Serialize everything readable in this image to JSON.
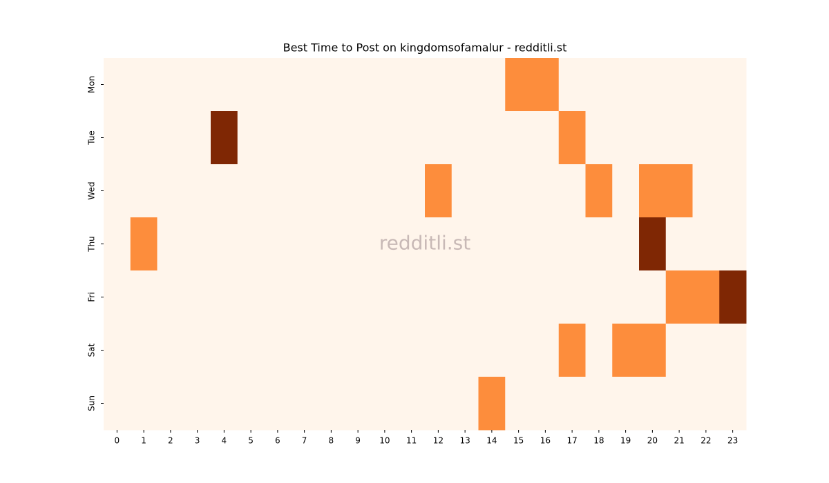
{
  "chart_data": {
    "type": "heatmap",
    "title": "Best Time to Post on kingdomsofamalur - redditli.st",
    "watermark": "redditli.st",
    "x_categories": [
      0,
      1,
      2,
      3,
      4,
      5,
      6,
      7,
      8,
      9,
      10,
      11,
      12,
      13,
      14,
      15,
      16,
      17,
      18,
      19,
      20,
      21,
      22,
      23
    ],
    "y_categories": [
      "Mon",
      "Tue",
      "Wed",
      "Thu",
      "Fri",
      "Sat",
      "Sun"
    ],
    "values": [
      [
        0,
        0,
        0,
        0,
        0,
        0,
        0,
        0,
        0,
        0,
        0,
        0,
        0,
        0,
        0,
        1,
        1,
        0,
        0,
        0,
        0,
        0,
        0,
        0
      ],
      [
        0,
        0,
        0,
        0,
        2,
        0,
        0,
        0,
        0,
        0,
        0,
        0,
        0,
        0,
        0,
        0,
        0,
        1,
        0,
        0,
        0,
        0,
        0,
        0
      ],
      [
        0,
        0,
        0,
        0,
        0,
        0,
        0,
        0,
        0,
        0,
        0,
        0,
        1,
        0,
        0,
        0,
        0,
        0,
        1,
        0,
        1,
        1,
        0,
        0
      ],
      [
        0,
        1,
        0,
        0,
        0,
        0,
        0,
        0,
        0,
        0,
        0,
        0,
        0,
        0,
        0,
        0,
        0,
        0,
        0,
        0,
        2,
        0,
        0,
        0
      ],
      [
        0,
        0,
        0,
        0,
        0,
        0,
        0,
        0,
        0,
        0,
        0,
        0,
        0,
        0,
        0,
        0,
        0,
        0,
        0,
        0,
        0,
        1,
        1,
        2
      ],
      [
        0,
        0,
        0,
        0,
        0,
        0,
        0,
        0,
        0,
        0,
        0,
        0,
        0,
        0,
        0,
        0,
        0,
        1,
        0,
        1,
        1,
        0,
        0,
        0
      ],
      [
        0,
        0,
        0,
        0,
        0,
        0,
        0,
        0,
        0,
        0,
        0,
        0,
        0,
        0,
        1,
        0,
        0,
        0,
        0,
        0,
        0,
        0,
        0,
        0
      ]
    ],
    "zlim": [
      0,
      2
    ],
    "colormap": [
      "#fff5eb",
      "#fd8d3c",
      "#7f2704"
    ]
  }
}
